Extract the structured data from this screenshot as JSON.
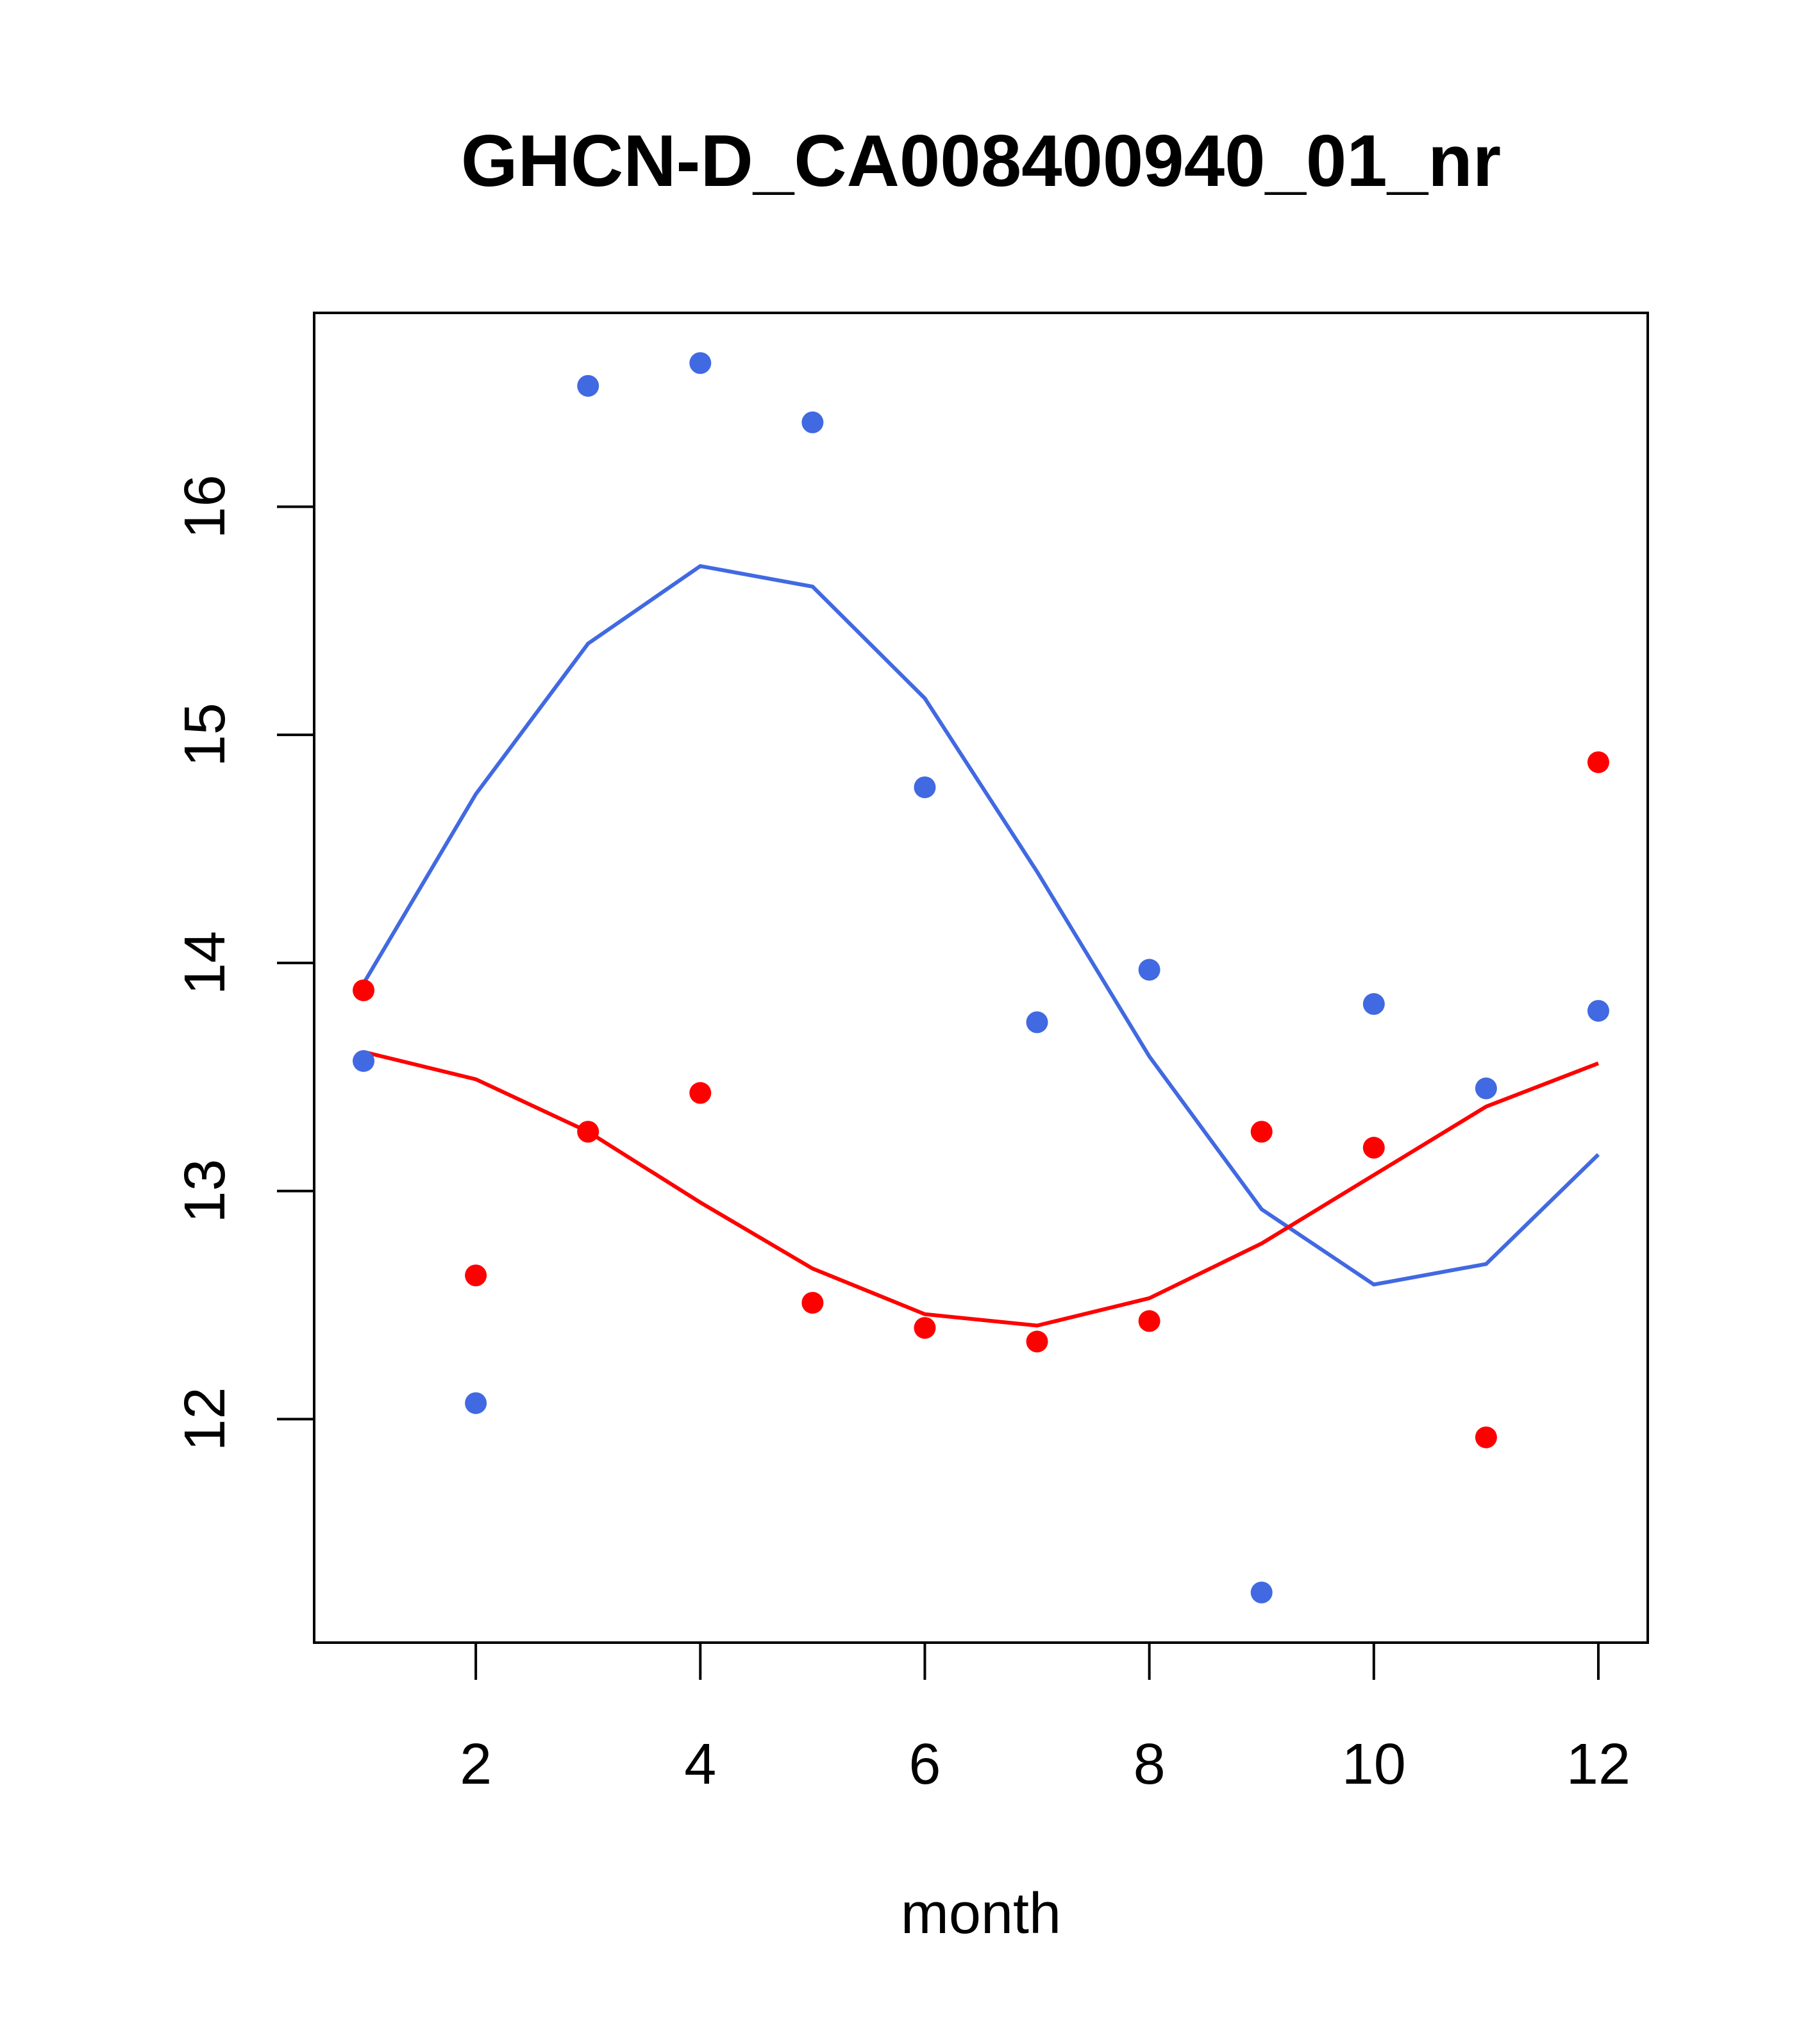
{
  "chart_data": {
    "type": "scatter",
    "title": "GHCN-D_CA008400940_01_nr",
    "xlabel": "month",
    "ylabel": "",
    "xlim": [
      0.56,
      12.44
    ],
    "ylim": [
      11.02,
      16.85
    ],
    "xticks": [
      2,
      4,
      6,
      8,
      10,
      12
    ],
    "xtick_labels": [
      "2",
      "4",
      "6",
      "8",
      "10",
      "12"
    ],
    "yticks": [
      12,
      13,
      14,
      15,
      16
    ],
    "ytick_labels": [
      "12",
      "13",
      "14",
      "15",
      "16"
    ],
    "grid": false,
    "x": [
      1,
      2,
      3,
      4,
      5,
      6,
      7,
      8,
      9,
      10,
      11,
      12
    ],
    "series": [
      {
        "name": "blue points",
        "kind": "points",
        "color": "#4169E1",
        "values": [
          13.57,
          12.07,
          16.53,
          16.63,
          16.37,
          14.77,
          13.74,
          13.97,
          11.24,
          13.82,
          13.45,
          13.79
        ]
      },
      {
        "name": "blue fit",
        "kind": "line",
        "color": "#4169E1",
        "values": [
          13.91,
          14.74,
          15.4,
          15.74,
          15.65,
          15.16,
          14.4,
          13.59,
          12.92,
          12.59,
          12.68,
          13.16
        ]
      },
      {
        "name": "red points",
        "kind": "points",
        "color": "#FF0000",
        "values": [
          13.88,
          12.63,
          13.26,
          13.43,
          12.51,
          12.4,
          12.34,
          12.43,
          13.26,
          13.19,
          11.92,
          14.88
        ]
      },
      {
        "name": "red fit",
        "kind": "line",
        "color": "#FF0000",
        "values": [
          13.61,
          13.49,
          13.26,
          12.95,
          12.66,
          12.46,
          12.41,
          12.53,
          12.77,
          13.07,
          13.37,
          13.56
        ]
      }
    ]
  }
}
